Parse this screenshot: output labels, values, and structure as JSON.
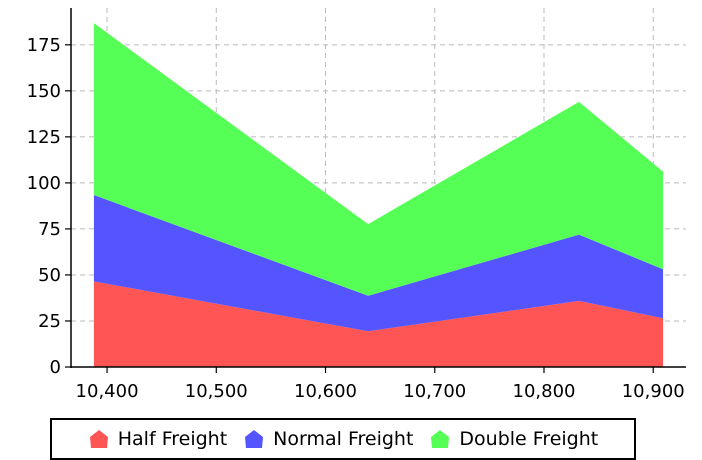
{
  "chart_data": {
    "type": "area",
    "stacked": true,
    "x": [
      10388,
      10639,
      10832,
      10909
    ],
    "series": [
      {
        "name": "Half Freight",
        "values": [
          46.5,
          19.4,
          35.9,
          26.5
        ],
        "color": "#ff5555"
      },
      {
        "name": "Normal Freight",
        "values": [
          46.9,
          19.3,
          36.0,
          26.6
        ],
        "color": "#5555ff"
      },
      {
        "name": "Double Freight",
        "values": [
          93.4,
          38.9,
          72.1,
          53.0
        ],
        "color": "#55ff55"
      }
    ],
    "xlim": [
      10367,
      10930
    ],
    "ylim": [
      0,
      195
    ],
    "x_ticks": [
      10400,
      10500,
      10600,
      10700,
      10800,
      10900
    ],
    "x_tick_labels": [
      "10,400",
      "10,500",
      "10,600",
      "10,700",
      "10,800",
      "10,900"
    ],
    "y_ticks": [
      0,
      25,
      50,
      75,
      100,
      125,
      150,
      175
    ],
    "y_tick_labels": [
      "0",
      "25",
      "50",
      "75",
      "100",
      "125",
      "150",
      "175"
    ],
    "grid": true,
    "legend_position": "bottom",
    "title": "",
    "xlabel": "",
    "ylabel": ""
  }
}
